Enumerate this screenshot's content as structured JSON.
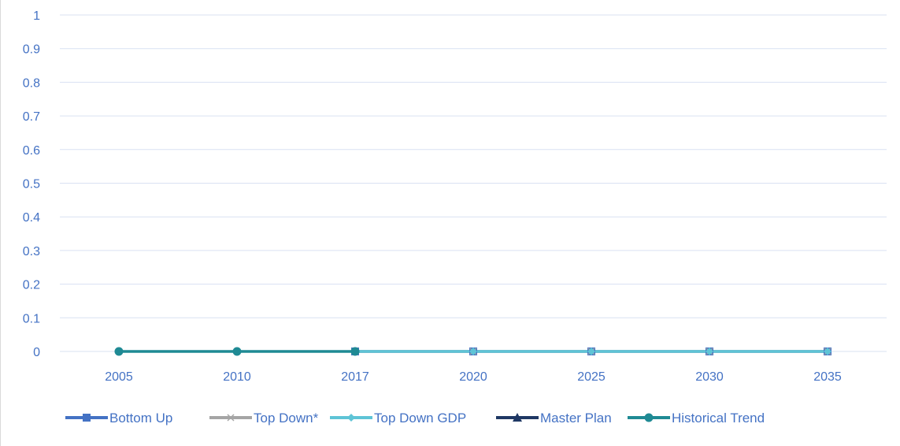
{
  "chart_data": {
    "type": "line",
    "categories": [
      "2005",
      "2010",
      "2017",
      "2020",
      "2025",
      "2030",
      "2035"
    ],
    "ylim": [
      0,
      1
    ],
    "yticks": [
      "0",
      "0.1",
      "0.2",
      "0.3",
      "0.4",
      "0.5",
      "0.6",
      "0.7",
      "0.8",
      "0.9",
      "1"
    ],
    "grid": true,
    "legend": "bottom",
    "series": [
      {
        "name": "Bottom Up",
        "color": "#4472c4",
        "marker": "square",
        "values": [
          null,
          null,
          0,
          0,
          0,
          0,
          0
        ]
      },
      {
        "name": "Top Down*",
        "color": "#a5a5a5",
        "marker": "x",
        "values": [
          null,
          null,
          0,
          0,
          0,
          0,
          0
        ]
      },
      {
        "name": "Top Down GDP",
        "color": "#5ec4d6",
        "marker": "diamond",
        "values": [
          null,
          null,
          0,
          0,
          0,
          0,
          0
        ]
      },
      {
        "name": "Master Plan",
        "color": "#1f3864",
        "marker": "triangle",
        "values": [
          null,
          null,
          null,
          null,
          null,
          null,
          null
        ]
      },
      {
        "name": "Historical Trend",
        "color": "#1f8a94",
        "marker": "circle",
        "values": [
          0,
          0,
          0,
          null,
          null,
          null,
          null
        ]
      }
    ]
  }
}
